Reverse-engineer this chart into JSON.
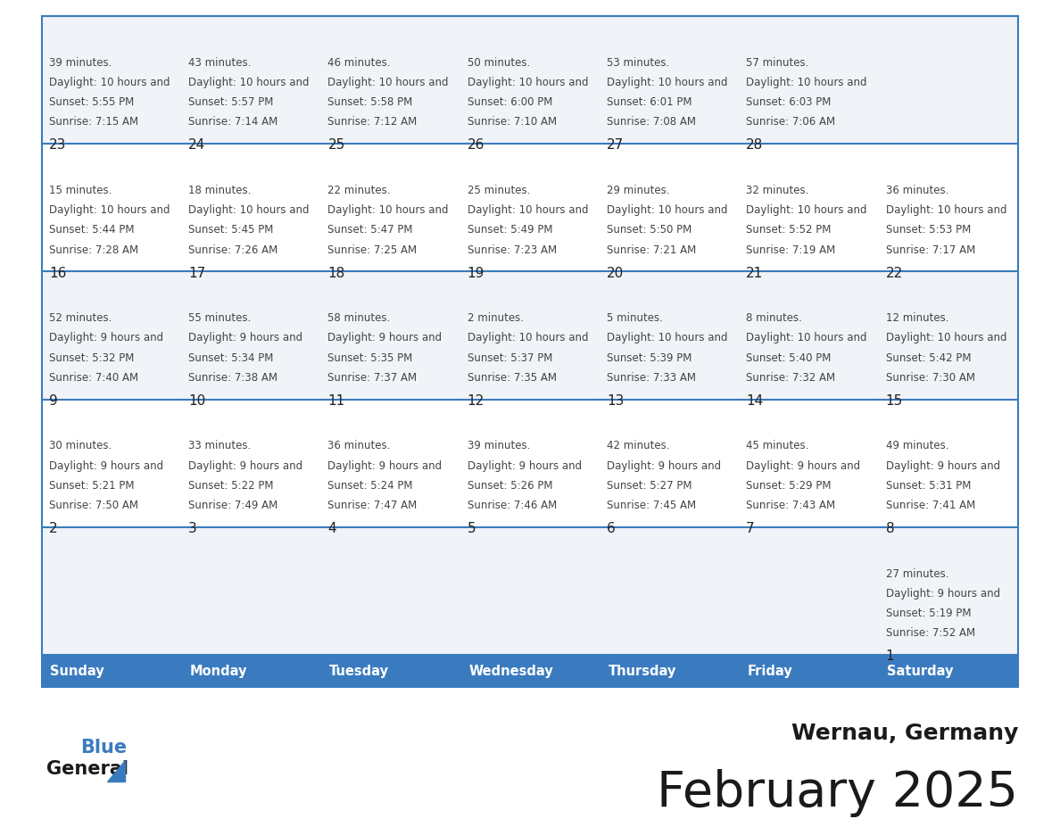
{
  "title": "February 2025",
  "subtitle": "Wernau, Germany",
  "header_bg_color": "#3a7bbf",
  "header_text_color": "#ffffff",
  "cell_bg_light": "#f0f3f7",
  "cell_bg_white": "#ffffff",
  "grid_line_color": "#3a7bbf",
  "text_color": "#444444",
  "day_num_color": "#222222",
  "days_of_week": [
    "Sunday",
    "Monday",
    "Tuesday",
    "Wednesday",
    "Thursday",
    "Friday",
    "Saturday"
  ],
  "calendar_data": [
    [
      {
        "day": "",
        "sunrise": "",
        "sunset": "",
        "daylight": ""
      },
      {
        "day": "",
        "sunrise": "",
        "sunset": "",
        "daylight": ""
      },
      {
        "day": "",
        "sunrise": "",
        "sunset": "",
        "daylight": ""
      },
      {
        "day": "",
        "sunrise": "",
        "sunset": "",
        "daylight": ""
      },
      {
        "day": "",
        "sunrise": "",
        "sunset": "",
        "daylight": ""
      },
      {
        "day": "",
        "sunrise": "",
        "sunset": "",
        "daylight": ""
      },
      {
        "day": "1",
        "sunrise": "7:52 AM",
        "sunset": "5:19 PM",
        "daylight": "9 hours and 27 minutes."
      }
    ],
    [
      {
        "day": "2",
        "sunrise": "7:50 AM",
        "sunset": "5:21 PM",
        "daylight": "9 hours and 30 minutes."
      },
      {
        "day": "3",
        "sunrise": "7:49 AM",
        "sunset": "5:22 PM",
        "daylight": "9 hours and 33 minutes."
      },
      {
        "day": "4",
        "sunrise": "7:47 AM",
        "sunset": "5:24 PM",
        "daylight": "9 hours and 36 minutes."
      },
      {
        "day": "5",
        "sunrise": "7:46 AM",
        "sunset": "5:26 PM",
        "daylight": "9 hours and 39 minutes."
      },
      {
        "day": "6",
        "sunrise": "7:45 AM",
        "sunset": "5:27 PM",
        "daylight": "9 hours and 42 minutes."
      },
      {
        "day": "7",
        "sunrise": "7:43 AM",
        "sunset": "5:29 PM",
        "daylight": "9 hours and 45 minutes."
      },
      {
        "day": "8",
        "sunrise": "7:41 AM",
        "sunset": "5:31 PM",
        "daylight": "9 hours and 49 minutes."
      }
    ],
    [
      {
        "day": "9",
        "sunrise": "7:40 AM",
        "sunset": "5:32 PM",
        "daylight": "9 hours and 52 minutes."
      },
      {
        "day": "10",
        "sunrise": "7:38 AM",
        "sunset": "5:34 PM",
        "daylight": "9 hours and 55 minutes."
      },
      {
        "day": "11",
        "sunrise": "7:37 AM",
        "sunset": "5:35 PM",
        "daylight": "9 hours and 58 minutes."
      },
      {
        "day": "12",
        "sunrise": "7:35 AM",
        "sunset": "5:37 PM",
        "daylight": "10 hours and 2 minutes."
      },
      {
        "day": "13",
        "sunrise": "7:33 AM",
        "sunset": "5:39 PM",
        "daylight": "10 hours and 5 minutes."
      },
      {
        "day": "14",
        "sunrise": "7:32 AM",
        "sunset": "5:40 PM",
        "daylight": "10 hours and 8 minutes."
      },
      {
        "day": "15",
        "sunrise": "7:30 AM",
        "sunset": "5:42 PM",
        "daylight": "10 hours and 12 minutes."
      }
    ],
    [
      {
        "day": "16",
        "sunrise": "7:28 AM",
        "sunset": "5:44 PM",
        "daylight": "10 hours and 15 minutes."
      },
      {
        "day": "17",
        "sunrise": "7:26 AM",
        "sunset": "5:45 PM",
        "daylight": "10 hours and 18 minutes."
      },
      {
        "day": "18",
        "sunrise": "7:25 AM",
        "sunset": "5:47 PM",
        "daylight": "10 hours and 22 minutes."
      },
      {
        "day": "19",
        "sunrise": "7:23 AM",
        "sunset": "5:49 PM",
        "daylight": "10 hours and 25 minutes."
      },
      {
        "day": "20",
        "sunrise": "7:21 AM",
        "sunset": "5:50 PM",
        "daylight": "10 hours and 29 minutes."
      },
      {
        "day": "21",
        "sunrise": "7:19 AM",
        "sunset": "5:52 PM",
        "daylight": "10 hours and 32 minutes."
      },
      {
        "day": "22",
        "sunrise": "7:17 AM",
        "sunset": "5:53 PM",
        "daylight": "10 hours and 36 minutes."
      }
    ],
    [
      {
        "day": "23",
        "sunrise": "7:15 AM",
        "sunset": "5:55 PM",
        "daylight": "10 hours and 39 minutes."
      },
      {
        "day": "24",
        "sunrise": "7:14 AM",
        "sunset": "5:57 PM",
        "daylight": "10 hours and 43 minutes."
      },
      {
        "day": "25",
        "sunrise": "7:12 AM",
        "sunset": "5:58 PM",
        "daylight": "10 hours and 46 minutes."
      },
      {
        "day": "26",
        "sunrise": "7:10 AM",
        "sunset": "6:00 PM",
        "daylight": "10 hours and 50 minutes."
      },
      {
        "day": "27",
        "sunrise": "7:08 AM",
        "sunset": "6:01 PM",
        "daylight": "10 hours and 53 minutes."
      },
      {
        "day": "28",
        "sunrise": "7:06 AM",
        "sunset": "6:03 PM",
        "daylight": "10 hours and 57 minutes."
      },
      {
        "day": "",
        "sunrise": "",
        "sunset": "",
        "daylight": ""
      }
    ]
  ]
}
